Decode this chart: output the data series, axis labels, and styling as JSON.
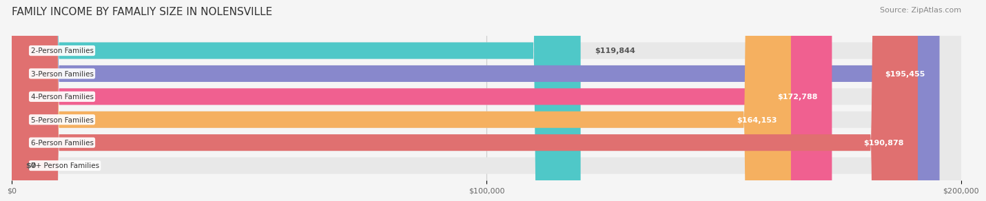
{
  "title": "FAMILY INCOME BY FAMALIY SIZE IN NOLENSVILLE",
  "source": "Source: ZipAtlas.com",
  "categories": [
    "2-Person Families",
    "3-Person Families",
    "4-Person Families",
    "5-Person Families",
    "6-Person Families",
    "7+ Person Families"
  ],
  "values": [
    119844,
    195455,
    172788,
    164153,
    190878,
    0
  ],
  "bar_colors": [
    "#4fc8c8",
    "#8888cc",
    "#f06090",
    "#f5b060",
    "#e07070",
    "#a0c8e8"
  ],
  "label_texts": [
    "$119,844",
    "$195,455",
    "$172,788",
    "$164,153",
    "$190,878",
    "$0"
  ],
  "label_inside": [
    false,
    true,
    true,
    true,
    true,
    false
  ],
  "xlim": [
    0,
    200000
  ],
  "xticks": [
    0,
    100000,
    200000
  ],
  "xticklabels": [
    "$0",
    "$100,000",
    "$200,000"
  ],
  "background_color": "#f5f5f5",
  "bar_background_color": "#e8e8e8",
  "title_fontsize": 11,
  "source_fontsize": 8,
  "bar_label_fontsize": 8,
  "category_fontsize": 7.5
}
